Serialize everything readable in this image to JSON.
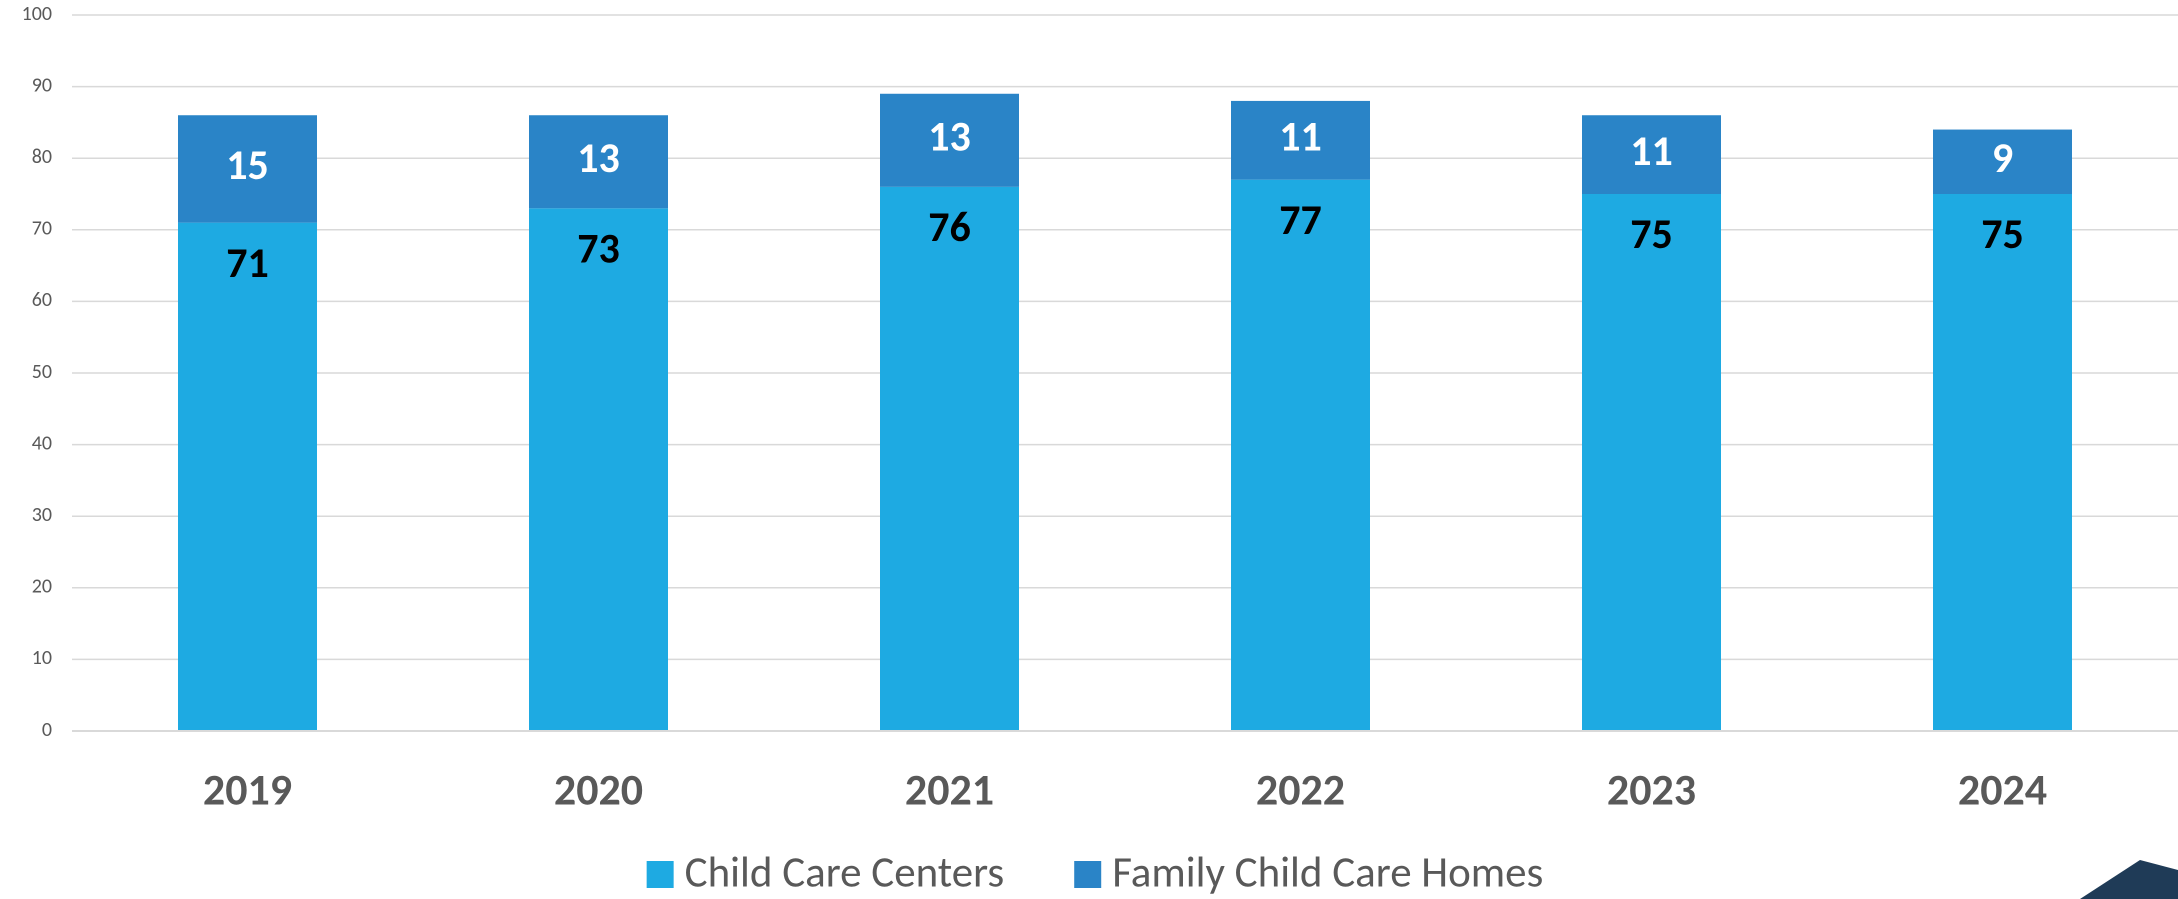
{
  "chart_data": {
    "type": "stacked_bar",
    "categories": [
      "2019",
      "2020",
      "2021",
      "2022",
      "2023",
      "2024"
    ],
    "series": [
      {
        "name": "Child Care Centers",
        "color": "#1eaae2",
        "values": [
          71,
          73,
          76,
          77,
          75,
          75
        ]
      },
      {
        "name": "Family Child Care Homes",
        "color": "#2a84c7",
        "values": [
          15,
          13,
          13,
          11,
          11,
          9
        ]
      }
    ],
    "ylim": [
      0,
      100
    ],
    "yticks": [
      0,
      10,
      20,
      30,
      40,
      50,
      60,
      70,
      80,
      90,
      100
    ],
    "grid": true
  }
}
